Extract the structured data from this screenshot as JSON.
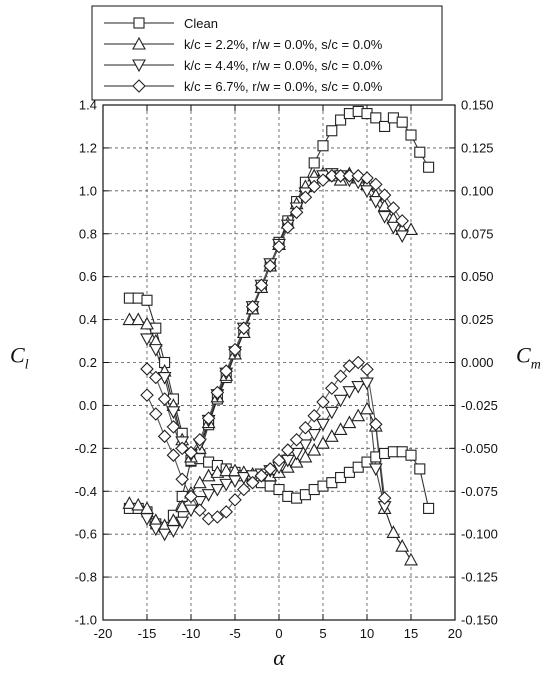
{
  "chart_data": {
    "type": "line",
    "title": "",
    "xlabel": "α",
    "ylabel_left": {
      "main": "C",
      "sub": "l"
    },
    "ylabel_right": {
      "main": "C",
      "sub": "m"
    },
    "xlim": [
      -20,
      20
    ],
    "ylim_left": [
      -1.0,
      1.4
    ],
    "ylim_right": [
      -0.15,
      0.15
    ],
    "x_ticks": [
      "-20",
      "-15",
      "-10",
      "-5",
      "0",
      "5",
      "10",
      "15",
      "20"
    ],
    "y_left_ticks": [
      "-1.0",
      "-0.8",
      "-0.6",
      "-0.4",
      "-0.2",
      "0.0",
      "0.2",
      "0.4",
      "0.6",
      "0.8",
      "1.0",
      "1.2",
      "1.4"
    ],
    "y_right_ticks": [
      "-0.150",
      "-0.125",
      "-0.100",
      "-0.075",
      "-0.050",
      "-0.025",
      "0.000",
      "0.025",
      "0.050",
      "0.075",
      "0.100",
      "0.125",
      "0.150"
    ],
    "grid": true,
    "legend_position": "top-center",
    "series": [
      {
        "name": "Clean",
        "marker": "square",
        "cl": [
          [
            -17,
            0.5
          ],
          [
            -16,
            0.5
          ],
          [
            -15,
            0.49
          ],
          [
            -14,
            0.36
          ],
          [
            -13,
            0.2
          ],
          [
            -12,
            0.03
          ],
          [
            -11,
            -0.13
          ],
          [
            -10,
            -0.26
          ],
          [
            -9,
            -0.23
          ],
          [
            -8,
            -0.09
          ],
          [
            -7,
            0.03
          ],
          [
            -6,
            0.13
          ],
          [
            -5,
            0.24
          ],
          [
            -4,
            0.34
          ],
          [
            -3,
            0.45
          ],
          [
            -2,
            0.55
          ],
          [
            -1,
            0.65
          ],
          [
            0,
            0.76
          ],
          [
            1,
            0.86
          ],
          [
            2,
            0.95
          ],
          [
            3,
            1.04
          ],
          [
            4,
            1.13
          ],
          [
            5,
            1.21
          ],
          [
            6,
            1.28
          ],
          [
            7,
            1.33
          ],
          [
            8,
            1.36
          ],
          [
            9,
            1.37
          ],
          [
            10,
            1.36
          ],
          [
            11,
            1.34
          ],
          [
            12,
            1.3
          ],
          [
            13,
            1.34
          ],
          [
            14,
            1.32
          ],
          [
            15,
            1.26
          ],
          [
            16,
            1.18
          ],
          [
            17,
            1.11
          ]
        ],
        "cm": [
          [
            -17,
            -0.085
          ],
          [
            -16,
            -0.085
          ],
          [
            -15,
            -0.087
          ],
          [
            -14,
            -0.094
          ],
          [
            -13,
            -0.096
          ],
          [
            -12,
            -0.089
          ],
          [
            -11,
            -0.078
          ],
          [
            -10,
            -0.057
          ],
          [
            -9,
            -0.056
          ],
          [
            -8,
            -0.058
          ],
          [
            -7,
            -0.06
          ],
          [
            -6,
            -0.062
          ],
          [
            -5,
            -0.064
          ],
          [
            -4,
            -0.066
          ],
          [
            -3,
            -0.068
          ],
          [
            -2,
            -0.07
          ],
          [
            -1,
            -0.072
          ],
          [
            0,
            -0.074
          ],
          [
            1,
            -0.078
          ],
          [
            2,
            -0.079
          ],
          [
            3,
            -0.077
          ],
          [
            4,
            -0.074
          ],
          [
            5,
            -0.072
          ],
          [
            6,
            -0.07
          ],
          [
            7,
            -0.067
          ],
          [
            8,
            -0.064
          ],
          [
            9,
            -0.061
          ],
          [
            10,
            -0.058
          ],
          [
            11,
            -0.055
          ],
          [
            12,
            -0.053
          ],
          [
            13,
            -0.052
          ],
          [
            14,
            -0.052
          ],
          [
            15,
            -0.054
          ],
          [
            16,
            -0.062
          ],
          [
            17,
            -0.085
          ]
        ]
      },
      {
        "name": "k/c = 2.2%, r/w = 0.0%, s/c = 0.0%",
        "marker": "triangle-up",
        "cl": [
          [
            -17,
            0.4
          ],
          [
            -16,
            0.4
          ],
          [
            -15,
            0.38
          ],
          [
            -14,
            0.3
          ],
          [
            -13,
            0.16
          ],
          [
            -12,
            0.0
          ],
          [
            -11,
            -0.16
          ],
          [
            -10,
            -0.24
          ],
          [
            -9,
            -0.2
          ],
          [
            -8,
            -0.08
          ],
          [
            -7,
            0.04
          ],
          [
            -6,
            0.14
          ],
          [
            -5,
            0.24
          ],
          [
            -4,
            0.34
          ],
          [
            -3,
            0.45
          ],
          [
            -2,
            0.55
          ],
          [
            -1,
            0.65
          ],
          [
            0,
            0.75
          ],
          [
            1,
            0.85
          ],
          [
            2,
            0.94
          ],
          [
            3,
            1.02
          ],
          [
            4,
            1.07
          ],
          [
            5,
            1.08
          ],
          [
            6,
            1.07
          ],
          [
            7,
            1.05
          ],
          [
            8,
            1.08
          ],
          [
            9,
            1.06
          ],
          [
            10,
            1.03
          ],
          [
            11,
            0.98
          ],
          [
            12,
            0.93
          ],
          [
            13,
            0.87
          ],
          [
            14,
            0.82
          ],
          [
            15,
            0.82
          ]
        ],
        "cm": [
          [
            -17,
            -0.082
          ],
          [
            -16,
            -0.083
          ],
          [
            -15,
            -0.085
          ],
          [
            -14,
            -0.092
          ],
          [
            -13,
            -0.095
          ],
          [
            -12,
            -0.092
          ],
          [
            -11,
            -0.084
          ],
          [
            -10,
            -0.076
          ],
          [
            -9,
            -0.07
          ],
          [
            -8,
            -0.066
          ],
          [
            -7,
            -0.064
          ],
          [
            -6,
            -0.063
          ],
          [
            -5,
            -0.063
          ],
          [
            -4,
            -0.064
          ],
          [
            -3,
            -0.065
          ],
          [
            -2,
            -0.066
          ],
          [
            -1,
            -0.066
          ],
          [
            0,
            -0.064
          ],
          [
            1,
            -0.061
          ],
          [
            2,
            -0.058
          ],
          [
            3,
            -0.055
          ],
          [
            4,
            -0.051
          ],
          [
            5,
            -0.047
          ],
          [
            6,
            -0.043
          ],
          [
            7,
            -0.039
          ],
          [
            8,
            -0.035
          ],
          [
            9,
            -0.031
          ],
          [
            10,
            -0.027
          ],
          [
            11,
            -0.037
          ],
          [
            12,
            -0.085
          ],
          [
            13,
            -0.099
          ],
          [
            14,
            -0.107
          ],
          [
            15,
            -0.115
          ]
        ]
      },
      {
        "name": "k/c = 4.4%, r/w = 0.0%, s/c = 0.0%",
        "marker": "triangle-down",
        "cl": [
          [
            -15,
            0.31
          ],
          [
            -14,
            0.26
          ],
          [
            -13,
            0.13
          ],
          [
            -12,
            -0.03
          ],
          [
            -11,
            -0.17
          ],
          [
            -10,
            -0.23
          ],
          [
            -9,
            -0.18
          ],
          [
            -8,
            -0.07
          ],
          [
            -7,
            0.05
          ],
          [
            -6,
            0.15
          ],
          [
            -5,
            0.25
          ],
          [
            -4,
            0.36
          ],
          [
            -3,
            0.46
          ],
          [
            -2,
            0.56
          ],
          [
            -1,
            0.66
          ],
          [
            0,
            0.75
          ],
          [
            1,
            0.84
          ],
          [
            2,
            0.92
          ],
          [
            3,
            0.99
          ],
          [
            4,
            1.04
          ],
          [
            5,
            1.07
          ],
          [
            6,
            1.08
          ],
          [
            7,
            1.07
          ],
          [
            8,
            1.05
          ],
          [
            9,
            1.04
          ],
          [
            10,
            1.0
          ],
          [
            11,
            0.95
          ],
          [
            12,
            0.88
          ],
          [
            13,
            0.83
          ],
          [
            14,
            0.79
          ]
        ],
        "cm": [
          [
            -15,
            -0.091
          ],
          [
            -14,
            -0.097
          ],
          [
            -13,
            -0.1
          ],
          [
            -12,
            -0.098
          ],
          [
            -11,
            -0.093
          ],
          [
            -10,
            -0.086
          ],
          [
            -9,
            -0.081
          ],
          [
            -8,
            -0.077
          ],
          [
            -7,
            -0.074
          ],
          [
            -6,
            -0.071
          ],
          [
            -5,
            -0.069
          ],
          [
            -4,
            -0.067
          ],
          [
            -3,
            -0.066
          ],
          [
            -2,
            -0.065
          ],
          [
            -1,
            -0.063
          ],
          [
            0,
            -0.061
          ],
          [
            1,
            -0.057
          ],
          [
            2,
            -0.053
          ],
          [
            3,
            -0.048
          ],
          [
            4,
            -0.042
          ],
          [
            5,
            -0.036
          ],
          [
            6,
            -0.029
          ],
          [
            7,
            -0.022
          ],
          [
            8,
            -0.017
          ],
          [
            9,
            -0.014
          ],
          [
            10,
            -0.012
          ],
          [
            11,
            -0.062
          ],
          [
            12,
            -0.084
          ]
        ]
      },
      {
        "name": "k/c = 6.7%, r/w = 0.0%, s/c = 0.0%",
        "marker": "diamond",
        "cl": [
          [
            -15,
            0.17
          ],
          [
            -14,
            0.13
          ],
          [
            -13,
            0.03
          ],
          [
            -12,
            -0.1
          ],
          [
            -11,
            -0.2
          ],
          [
            -10,
            -0.22
          ],
          [
            -9,
            -0.16
          ],
          [
            -8,
            -0.06
          ],
          [
            -7,
            0.06
          ],
          [
            -6,
            0.16
          ],
          [
            -5,
            0.26
          ],
          [
            -4,
            0.36
          ],
          [
            -3,
            0.46
          ],
          [
            -2,
            0.56
          ],
          [
            -1,
            0.65
          ],
          [
            0,
            0.74
          ],
          [
            1,
            0.83
          ],
          [
            2,
            0.9
          ],
          [
            3,
            0.97
          ],
          [
            4,
            1.02
          ],
          [
            5,
            1.05
          ],
          [
            6,
            1.07
          ],
          [
            7,
            1.07
          ],
          [
            8,
            1.07
          ],
          [
            9,
            1.07
          ],
          [
            10,
            1.06
          ],
          [
            11,
            1.03
          ],
          [
            12,
            0.98
          ],
          [
            13,
            0.92
          ],
          [
            14,
            0.86
          ]
        ],
        "cm": [
          [
            -15,
            -0.019
          ],
          [
            -14,
            -0.03
          ],
          [
            -13,
            -0.043
          ],
          [
            -12,
            -0.054
          ],
          [
            -11,
            -0.068
          ],
          [
            -10,
            -0.078
          ],
          [
            -9,
            -0.086
          ],
          [
            -8,
            -0.091
          ],
          [
            -7,
            -0.09
          ],
          [
            -6,
            -0.087
          ],
          [
            -5,
            -0.08
          ],
          [
            -4,
            -0.074
          ],
          [
            -3,
            -0.07
          ],
          [
            -2,
            -0.066
          ],
          [
            -1,
            -0.062
          ],
          [
            0,
            -0.057
          ],
          [
            1,
            -0.051
          ],
          [
            2,
            -0.045
          ],
          [
            3,
            -0.038
          ],
          [
            4,
            -0.031
          ],
          [
            5,
            -0.023
          ],
          [
            6,
            -0.015
          ],
          [
            7,
            -0.008
          ],
          [
            8,
            -0.002
          ],
          [
            9,
            0.0
          ],
          [
            10,
            -0.004
          ],
          [
            11,
            -0.036
          ],
          [
            12,
            -0.079
          ]
        ]
      }
    ]
  }
}
